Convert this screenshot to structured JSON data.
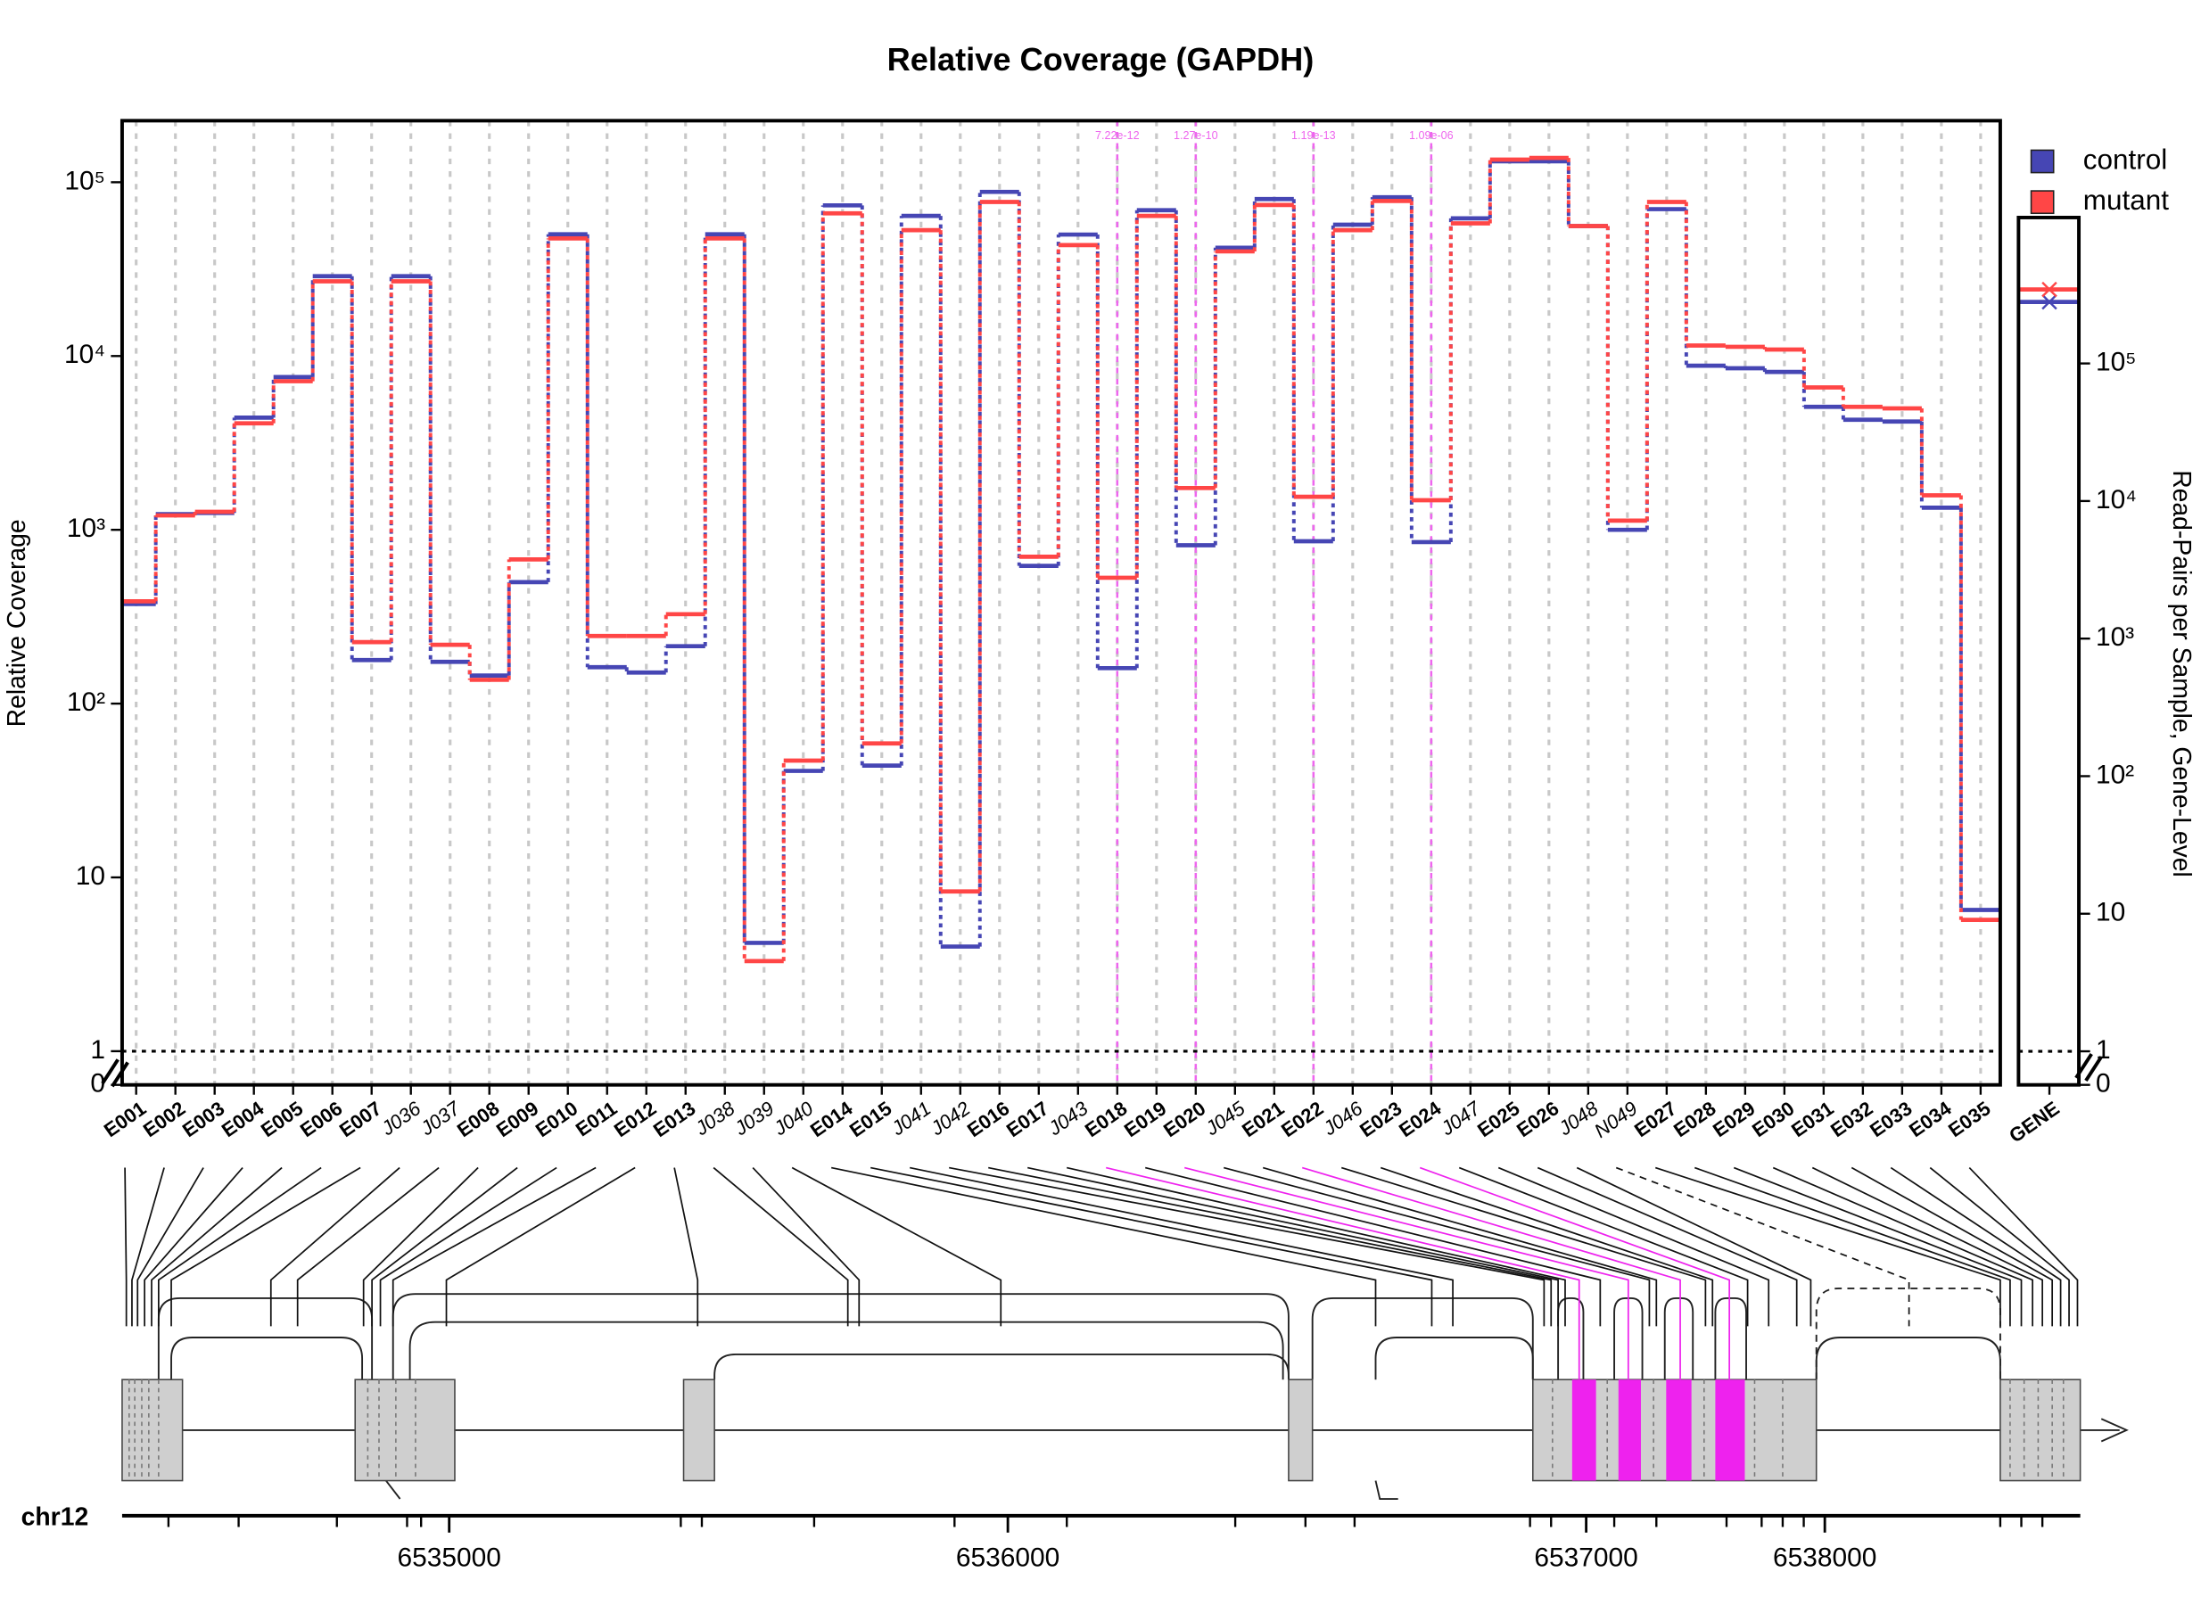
{
  "chart_data": [
    {
      "type": "step",
      "title": "Relative Coverage (GAPDH)",
      "ylabel": "Relative Coverage",
      "categories": [
        "E001",
        "E002",
        "E003",
        "E004",
        "E005",
        "E006",
        "E007",
        "J036",
        "J037",
        "E008",
        "E009",
        "E010",
        "E011",
        "E012",
        "E013",
        "J038",
        "J039",
        "J040",
        "E014",
        "E015",
        "J041",
        "J042",
        "E016",
        "E017",
        "J043",
        "E018",
        "E019",
        "E020",
        "J045",
        "E021",
        "E022",
        "J046",
        "E023",
        "E024",
        "J047",
        "E025",
        "E026",
        "J048",
        "N049",
        "E027",
        "E028",
        "E029",
        "E030",
        "E031",
        "E032",
        "E033",
        "E034",
        "E035"
      ],
      "series": [
        {
          "name": "control",
          "color": "#4646b4",
          "values": [
            374,
            1230,
            1250,
            4420,
            7570,
            28800,
            178,
            28800,
            174,
            145,
            500,
            50200,
            162,
            151,
            214,
            50200,
            4.2,
            41,
            73600,
            44,
            64000,
            4.0,
            88000,
            620,
            50000,
            160,
            69000,
            815,
            42000,
            80000,
            860,
            57000,
            82000,
            850,
            62000,
            132000,
            132000,
            56000,
            1000,
            70000,
            8800,
            8500,
            8100,
            5100,
            4300,
            4200,
            1340,
            6.5
          ]
        },
        {
          "name": "mutant",
          "color": "#ff4646",
          "values": [
            388,
            1210,
            1270,
            4100,
            7160,
            26900,
            226,
            26900,
            218,
            137,
            676,
            47500,
            245,
            245,
            327,
            47500,
            3.3,
            47,
            66200,
            59,
            53000,
            8.3,
            77000,
            700,
            43500,
            530,
            64000,
            1740,
            40000,
            74000,
            1550,
            53000,
            78000,
            1480,
            58000,
            135000,
            138000,
            56000,
            1130,
            77000,
            11500,
            11300,
            10900,
            6600,
            5100,
            5000,
            1580,
            5.7
          ]
        }
      ],
      "ylim": [
        0.64,
        226000
      ],
      "log": true,
      "grid": true,
      "legend": "top-right",
      "yticks": [
        0,
        1,
        10,
        {
          "value": 100,
          "label": "10²"
        },
        {
          "value": 1000,
          "label": "10³"
        },
        {
          "value": 10000,
          "label": "10⁴"
        },
        {
          "value": 100000,
          "label": "10⁵"
        }
      ],
      "annotations": [
        {
          "category": "E018",
          "label": "7.22e-12"
        },
        {
          "category": "E020",
          "label": "1.27e-10"
        },
        {
          "category": "E022",
          "label": "1.19e-13"
        },
        {
          "category": "E024",
          "label": "1.09e-06"
        }
      ],
      "annotation_color": "#ee66ee"
    },
    {
      "type": "gene-level",
      "ylabel": "Read-Pairs per Sample, Gene-Level",
      "categories": [
        "GENE"
      ],
      "series": [
        {
          "color": "#4646b4",
          "values": [
            280000
          ]
        },
        {
          "color": "#ff4646",
          "values": [
            345000
          ]
        }
      ],
      "ylim": [
        0.57,
        1150000
      ],
      "log": true,
      "yticks": [
        0,
        1,
        10,
        {
          "value": 100,
          "label": "10²"
        },
        {
          "value": 1000,
          "label": "10³"
        },
        {
          "value": 10000,
          "label": "10⁴"
        },
        {
          "value": 100000,
          "label": "10⁵"
        }
      ]
    },
    {
      "type": "track",
      "label": "chr12",
      "xticks": [
        6535000,
        6536000,
        6537000,
        6538000
      ]
    }
  ]
}
